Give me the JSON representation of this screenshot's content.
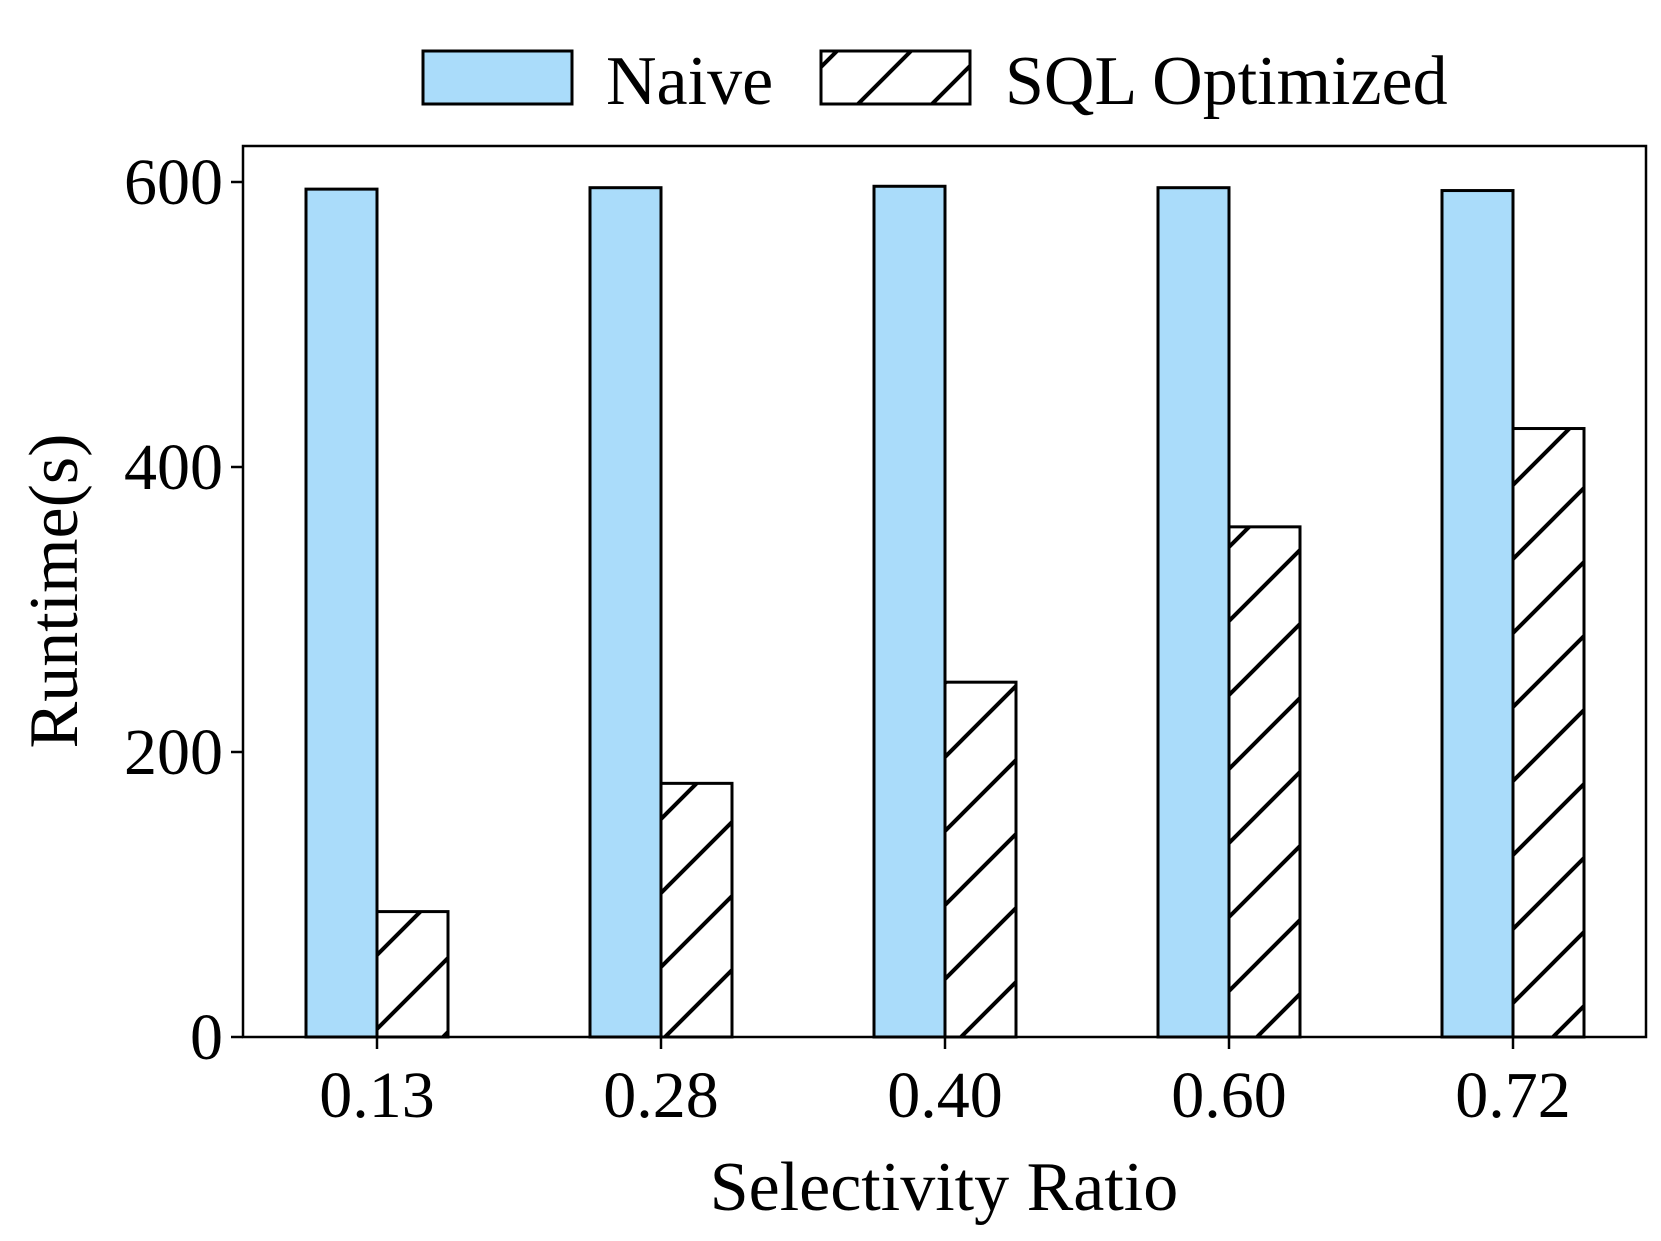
{
  "chart_data": {
    "type": "bar",
    "categories": [
      "0.13",
      "0.28",
      "0.40",
      "0.60",
      "0.72"
    ],
    "series": [
      {
        "name": "Naive",
        "values": [
          595,
          596,
          597,
          596,
          594
        ],
        "color": "#aadcfa",
        "hatch": false
      },
      {
        "name": "SQL Optimized",
        "values": [
          88,
          178,
          249,
          358,
          427
        ],
        "color": "#ffffff",
        "hatch": true
      }
    ],
    "xlabel": "Selectivity Ratio",
    "ylabel": "Runtime(s)",
    "ylim": [
      0,
      625
    ],
    "yticks": [
      0,
      200,
      400,
      600
    ],
    "grid": false,
    "legend_position": "top-center"
  }
}
